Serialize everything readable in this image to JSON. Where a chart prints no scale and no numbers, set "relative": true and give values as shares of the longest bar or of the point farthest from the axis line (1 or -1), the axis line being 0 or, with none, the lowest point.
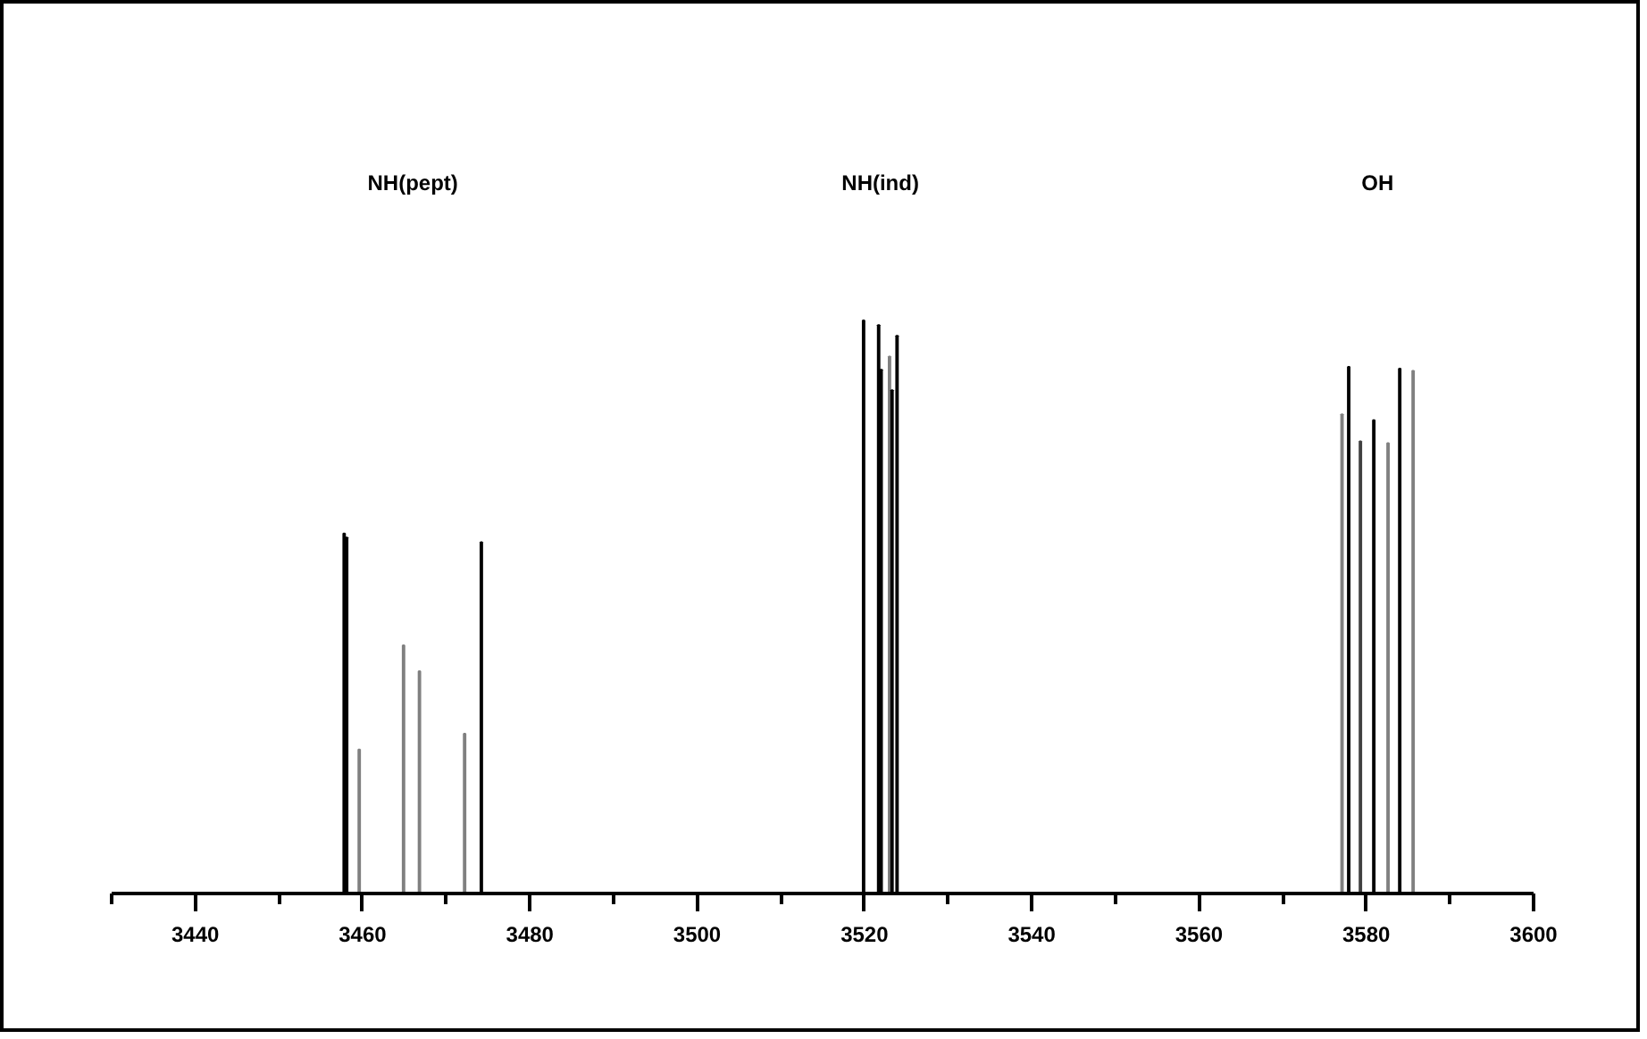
{
  "chart_data": {
    "type": "bar",
    "relative": true,
    "x": [
      3457.8,
      3458.1,
      3459.6,
      3464.9,
      3466.8,
      3472.2,
      3474.2,
      3519.9,
      3521.7,
      3522.0,
      3523.0,
      3523.3,
      3523.9,
      3577.1,
      3577.9,
      3579.3,
      3580.9,
      3582.6,
      3584.0,
      3585.6
    ],
    "values": [
      0.628,
      0.621,
      0.251,
      0.433,
      0.388,
      0.279,
      0.613,
      1,
      0.992,
      0.914,
      0.937,
      0.878,
      0.973,
      0.836,
      0.919,
      0.789,
      0.826,
      0.786,
      0.916,
      0.912
    ],
    "colors": [
      "#000000",
      "#000000",
      "#808080",
      "#808080",
      "#808080",
      "#808080",
      "#000000",
      "#000000",
      "#000000",
      "#000000",
      "#808080",
      "#000000",
      "#000000",
      "#808080",
      "#000000",
      "#404040",
      "#000000",
      "#808080",
      "#000000",
      "#808080"
    ],
    "xlim": [
      3430,
      3600
    ],
    "xticks": [
      {
        "value": 3430,
        "label": null
      },
      3440,
      {
        "value": 3450,
        "label": null
      },
      3460,
      {
        "value": 3470,
        "label": null
      },
      3480,
      {
        "value": 3490,
        "label": null
      },
      3500,
      {
        "value": 3510,
        "label": null
      },
      3520,
      {
        "value": 3530,
        "label": null
      },
      3540,
      {
        "value": 3550,
        "label": null
      },
      3560,
      {
        "value": 3570,
        "label": null
      },
      3580,
      {
        "value": 3590,
        "label": null
      },
      3600
    ],
    "annotations": [
      "NH(pept)",
      "NH(ind)",
      "OH"
    ],
    "grid": false
  }
}
